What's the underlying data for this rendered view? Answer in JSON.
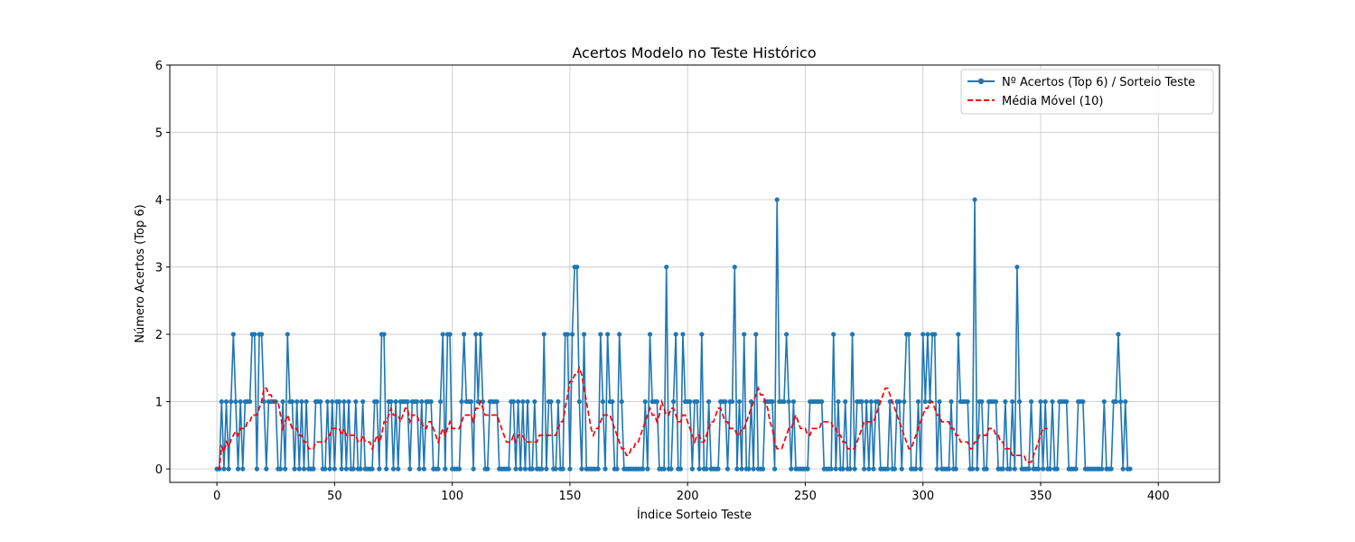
{
  "chart_data": {
    "type": "line",
    "title": "Acertos Modelo no Teste Histórico",
    "xlabel": "Índice Sorteio Teste",
    "ylabel": "Número Acertos (Top 6)",
    "xlim": [
      -20,
      426
    ],
    "ylim": [
      -0.2,
      6
    ],
    "xticks": [
      0,
      50,
      100,
      150,
      200,
      250,
      300,
      350,
      400
    ],
    "yticks": [
      0,
      1,
      2,
      3,
      4,
      5,
      6
    ],
    "grid": true,
    "legend_position": "upper right",
    "colors": {
      "hits": "#1f77b4",
      "moving_average": "#ff0000",
      "grid": "#b0b0b0"
    },
    "series": [
      {
        "name": "Nº Acertos (Top 6) / Sorteio Teste",
        "style": "solid-line-with-markers",
        "x_start": 0,
        "values": [
          0,
          0,
          1,
          0,
          1,
          0,
          1,
          2,
          1,
          0,
          1,
          0,
          1,
          1,
          1,
          2,
          2,
          0,
          2,
          2,
          1,
          0,
          1,
          1,
          1,
          1,
          0,
          0,
          1,
          0,
          2,
          1,
          1,
          0,
          1,
          0,
          1,
          0,
          1,
          0,
          0,
          0,
          1,
          1,
          1,
          0,
          0,
          1,
          0,
          1,
          0,
          1,
          1,
          0,
          1,
          0,
          1,
          0,
          0,
          1,
          0,
          0,
          1,
          0,
          0,
          0,
          0,
          1,
          1,
          0,
          2,
          2,
          0,
          1,
          1,
          0,
          1,
          0,
          1,
          1,
          1,
          1,
          0,
          1,
          1,
          1,
          0,
          1,
          0,
          1,
          1,
          1,
          0,
          0,
          0,
          1,
          2,
          0,
          2,
          2,
          0,
          0,
          0,
          0,
          1,
          2,
          1,
          1,
          1,
          0,
          2,
          1,
          2,
          1,
          0,
          0,
          1,
          1,
          1,
          1,
          0,
          0,
          0,
          0,
          0,
          1,
          1,
          0,
          1,
          0,
          1,
          0,
          1,
          0,
          0,
          1,
          0,
          0,
          0,
          2,
          0,
          1,
          1,
          0,
          0,
          1,
          0,
          0,
          2,
          2,
          0,
          2,
          3,
          3,
          1,
          0,
          2,
          0,
          0,
          0,
          0,
          0,
          0,
          2,
          1,
          0,
          2,
          1,
          1,
          0,
          0,
          2,
          1,
          0,
          0,
          0,
          0,
          0,
          0,
          0,
          0,
          0,
          1,
          0,
          2,
          1,
          1,
          1,
          0,
          0,
          0,
          3,
          0,
          0,
          1,
          2,
          0,
          0,
          2,
          1,
          1,
          1,
          0,
          1,
          1,
          0,
          2,
          0,
          0,
          1,
          0,
          0,
          0,
          0,
          1,
          1,
          1,
          0,
          1,
          1,
          3,
          0,
          1,
          0,
          2,
          0,
          0,
          1,
          0,
          2,
          0,
          0,
          0,
          1,
          1,
          1,
          1,
          0,
          4,
          1,
          1,
          1,
          2,
          1,
          0,
          1,
          0,
          0,
          0,
          0,
          0,
          0,
          1,
          1,
          1,
          1,
          1,
          1,
          0,
          0,
          0,
          0,
          2,
          0,
          1,
          0,
          0,
          1,
          0,
          0,
          2,
          0,
          1,
          1,
          1,
          0,
          1,
          0,
          1,
          0,
          1,
          1,
          0,
          0,
          0,
          0,
          1,
          0,
          0,
          1,
          1,
          0,
          1,
          2,
          2,
          0,
          0,
          0,
          1,
          0,
          2,
          1,
          2,
          1,
          2,
          2,
          0,
          1,
          0,
          0,
          0,
          0,
          1,
          0,
          0,
          2,
          1,
          1,
          1,
          1,
          0,
          0,
          4,
          0,
          1,
          1,
          0,
          0,
          1,
          1,
          1,
          1,
          0,
          0,
          0,
          1,
          0,
          0,
          1,
          0,
          3,
          1,
          0,
          0,
          0,
          0,
          1,
          0,
          0,
          0,
          1,
          0,
          1,
          0,
          0,
          1,
          0,
          0,
          1,
          1,
          1,
          1,
          0,
          0,
          0,
          0,
          1,
          1,
          1,
          0,
          0,
          0,
          0,
          0,
          0,
          0,
          0,
          1,
          0,
          0,
          0,
          1,
          1,
          2,
          1,
          0,
          1,
          0,
          0
        ]
      },
      {
        "name": "Média Móvel (10)",
        "style": "dashed-line",
        "x_start": 0,
        "values": [
          0.0,
          0.0,
          0.33,
          0.25,
          0.4,
          0.33,
          0.43,
          0.5,
          0.56,
          0.5,
          0.6,
          0.6,
          0.6,
          0.7,
          0.7,
          0.8,
          0.8,
          0.8,
          0.9,
          1.0,
          1.2,
          1.2,
          1.1,
          1.1,
          1.0,
          1.0,
          1.0,
          0.8,
          0.6,
          0.7,
          0.8,
          0.7,
          0.6,
          0.6,
          0.6,
          0.5,
          0.5,
          0.4,
          0.4,
          0.3,
          0.3,
          0.3,
          0.4,
          0.4,
          0.4,
          0.4,
          0.4,
          0.5,
          0.5,
          0.6,
          0.6,
          0.6,
          0.6,
          0.5,
          0.6,
          0.5,
          0.5,
          0.5,
          0.5,
          0.5,
          0.4,
          0.4,
          0.5,
          0.4,
          0.4,
          0.4,
          0.3,
          0.4,
          0.5,
          0.4,
          0.5,
          0.7,
          0.7,
          0.8,
          0.9,
          0.8,
          0.8,
          0.8,
          0.7,
          0.8,
          0.9,
          0.9,
          0.7,
          0.8,
          0.8,
          0.8,
          0.7,
          0.7,
          0.6,
          0.6,
          0.7,
          0.7,
          0.6,
          0.5,
          0.4,
          0.5,
          0.6,
          0.5,
          0.6,
          0.7,
          0.6,
          0.6,
          0.6,
          0.6,
          0.7,
          0.8,
          0.8,
          0.8,
          0.8,
          0.7,
          0.9,
          0.9,
          1.0,
          0.9,
          0.8,
          0.8,
          0.8,
          0.8,
          0.8,
          0.8,
          0.7,
          0.6,
          0.5,
          0.4,
          0.4,
          0.4,
          0.5,
          0.4,
          0.5,
          0.5,
          0.5,
          0.4,
          0.4,
          0.4,
          0.4,
          0.4,
          0.4,
          0.5,
          0.5,
          0.5,
          0.5,
          0.5,
          0.5,
          0.5,
          0.5,
          0.6,
          0.7,
          0.7,
          0.9,
          1.1,
          1.3,
          1.3,
          1.4,
          1.4,
          1.5,
          1.4,
          1.2,
          1.0,
          0.8,
          0.6,
          0.5,
          0.6,
          0.6,
          0.7,
          0.8,
          0.8,
          0.8,
          0.8,
          0.7,
          0.6,
          0.5,
          0.4,
          0.3,
          0.3,
          0.2,
          0.2,
          0.3,
          0.3,
          0.4,
          0.4,
          0.5,
          0.6,
          0.7,
          0.8,
          0.9,
          0.8,
          0.8,
          0.7,
          0.8,
          1.0,
          0.9,
          0.8,
          0.8,
          0.9,
          0.9,
          0.8,
          0.7,
          0.7,
          0.8,
          0.8,
          0.7,
          0.6,
          0.5,
          0.4,
          0.5,
          0.5,
          0.4,
          0.4,
          0.5,
          0.6,
          0.7,
          0.7,
          0.8,
          0.9,
          0.9,
          0.8,
          0.7,
          0.7,
          0.6,
          0.6,
          0.6,
          0.5,
          0.5,
          0.6,
          0.6,
          0.7,
          0.8,
          0.9,
          1.0,
          1.1,
          1.2,
          1.1,
          1.1,
          1.0,
          0.9,
          0.7,
          0.6,
          0.4,
          0.3,
          0.3,
          0.3,
          0.4,
          0.5,
          0.6,
          0.6,
          0.7,
          0.8,
          0.7,
          0.6,
          0.6,
          0.6,
          0.5,
          0.5,
          0.6,
          0.6,
          0.6,
          0.6,
          0.7,
          0.7,
          0.7,
          0.7,
          0.7,
          0.6,
          0.6,
          0.5,
          0.5,
          0.4,
          0.4,
          0.3,
          0.3,
          0.3,
          0.3,
          0.4,
          0.5,
          0.6,
          0.7,
          0.7,
          0.7,
          0.7,
          0.7,
          0.8,
          0.9,
          1.0,
          1.1,
          1.2,
          1.2,
          1.1,
          1.0,
          0.9,
          0.8,
          0.7,
          0.6,
          0.5,
          0.4,
          0.3,
          0.3,
          0.4,
          0.5,
          0.6,
          0.7,
          0.8,
          0.9,
          0.9,
          1.0,
          1.0,
          0.9,
          0.8,
          0.8,
          0.7,
          0.7,
          0.7,
          0.7,
          0.6,
          0.6,
          0.5,
          0.5,
          0.4,
          0.4,
          0.4,
          0.4,
          0.3,
          0.3,
          0.4,
          0.4,
          0.5,
          0.5,
          0.5,
          0.5,
          0.6,
          0.6,
          0.6,
          0.5,
          0.5,
          0.4,
          0.4,
          0.3,
          0.3,
          0.3,
          0.2,
          0.2,
          0.2,
          0.2,
          0.2,
          0.2,
          0.1,
          0.1,
          0.1,
          0.2,
          0.3,
          0.4,
          0.5,
          0.6,
          0.6,
          0.6
        ]
      }
    ]
  }
}
